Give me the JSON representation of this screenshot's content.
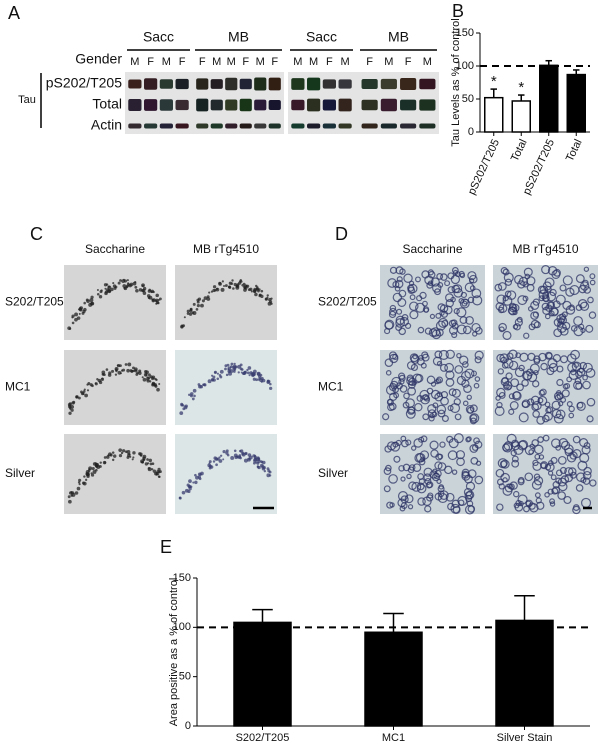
{
  "blot": {
    "panel_label": "A",
    "gender_label": "Gender",
    "tau_label": "Tau",
    "rows": [
      "pS202/T205",
      "Total",
      "Actin"
    ],
    "groups": [
      {
        "name": "Sacc",
        "lanes": [
          "M",
          "F",
          "M",
          "F"
        ]
      },
      {
        "name": "MB",
        "lanes": [
          "F",
          "M",
          "M",
          "F",
          "M",
          "F"
        ]
      },
      {
        "name": "Sacc",
        "lanes": [
          "M",
          "M",
          "F",
          "M"
        ]
      },
      {
        "name": "MB",
        "lanes": [
          "F",
          "M",
          "F",
          "M"
        ]
      }
    ]
  },
  "histology": [
    {
      "panel_label": "C",
      "columns": [
        "Saccharine",
        "MB rTg4510"
      ],
      "rows": [
        "S202/T205",
        "MC1",
        "Silver"
      ]
    },
    {
      "panel_label": "D",
      "columns": [
        "Saccharine",
        "MB rTg4510"
      ],
      "rows": [
        "S202/T205",
        "MC1",
        "Silver"
      ]
    }
  ],
  "chart_data": [
    {
      "type": "bar",
      "panel_label": "B",
      "ylabel": "Tau Levels as % of control",
      "categories": [
        "pS202/T205",
        "Total",
        "pS202/T205",
        "Total"
      ],
      "values": [
        52,
        47,
        101,
        87
      ],
      "errors": [
        13,
        9,
        7,
        7
      ],
      "colors": [
        "#ffffff",
        "#ffffff",
        "#000000",
        "#000000"
      ],
      "annotations": [
        {
          "category_index": 0,
          "text": "*"
        },
        {
          "category_index": 1,
          "text": "*"
        }
      ],
      "reference_line": 100,
      "ylim": [
        0,
        150
      ],
      "yticks": [
        0,
        50,
        100,
        150
      ]
    },
    {
      "type": "bar",
      "panel_label": "E",
      "ylabel": "Area positive as a % of control",
      "categories": [
        "S202/T205",
        "MC1",
        "Silver Stain"
      ],
      "values": [
        105,
        95,
        107
      ],
      "errors": [
        13,
        19,
        25
      ],
      "colors": [
        "#000000",
        "#000000",
        "#000000"
      ],
      "reference_line": 100,
      "ylim": [
        0,
        150
      ],
      "yticks": [
        0,
        50,
        100,
        150
      ]
    }
  ]
}
